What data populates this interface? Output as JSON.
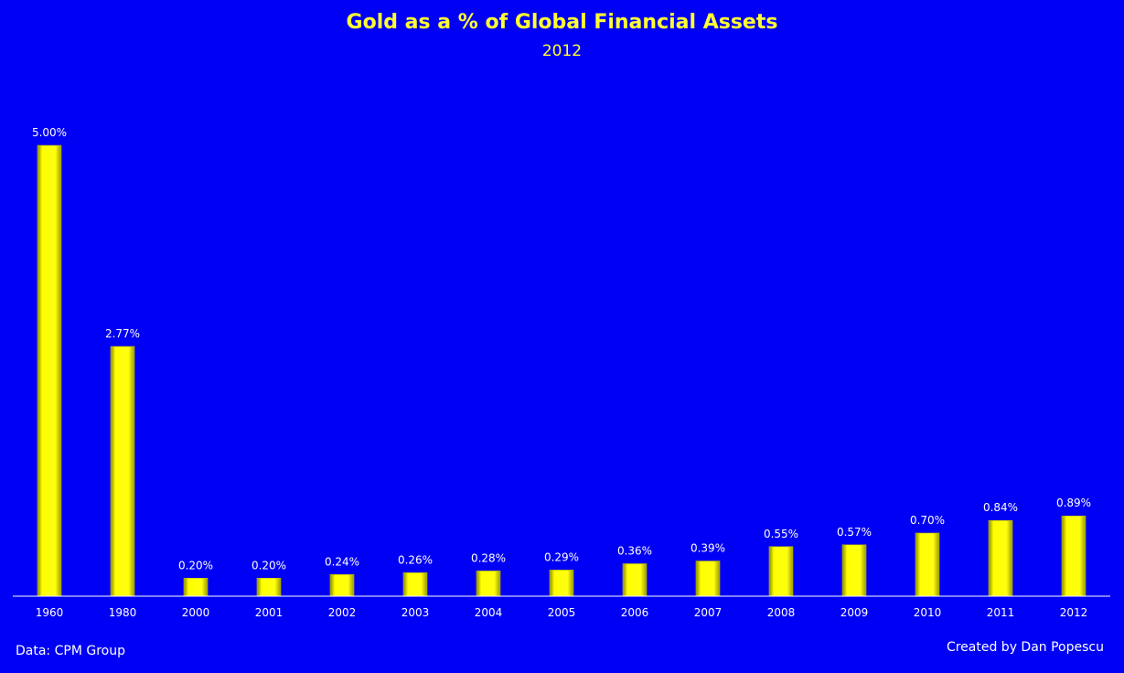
{
  "chart_data": {
    "type": "bar",
    "title": "Gold as a % of Global Financial Assets",
    "subtitle": "2012",
    "categories": [
      "1960",
      "1980",
      "2000",
      "2001",
      "2002",
      "2003",
      "2004",
      "2005",
      "2006",
      "2007",
      "2008",
      "2009",
      "2010",
      "2011",
      "2012"
    ],
    "values": [
      5.0,
      2.77,
      0.2,
      0.2,
      0.24,
      0.26,
      0.28,
      0.29,
      0.36,
      0.39,
      0.55,
      0.57,
      0.7,
      0.84,
      0.89
    ],
    "data_labels": [
      "5.00%",
      "2.77%",
      "0.20%",
      "0.20%",
      "0.24%",
      "0.26%",
      "0.28%",
      "0.29%",
      "0.36%",
      "0.39%",
      "0.55%",
      "0.57%",
      "0.70%",
      "0.84%",
      "0.89%"
    ],
    "xlabel": "",
    "ylabel": "",
    "ylim": [
      0,
      5
    ],
    "grid": false,
    "colors": {
      "background": "#0000f5",
      "bar": "#ffff00",
      "title": "#ffff33",
      "text": "#ffffff"
    }
  },
  "footer": {
    "source": "Data: CPM Group",
    "credit": "Created by Dan Popescu"
  }
}
